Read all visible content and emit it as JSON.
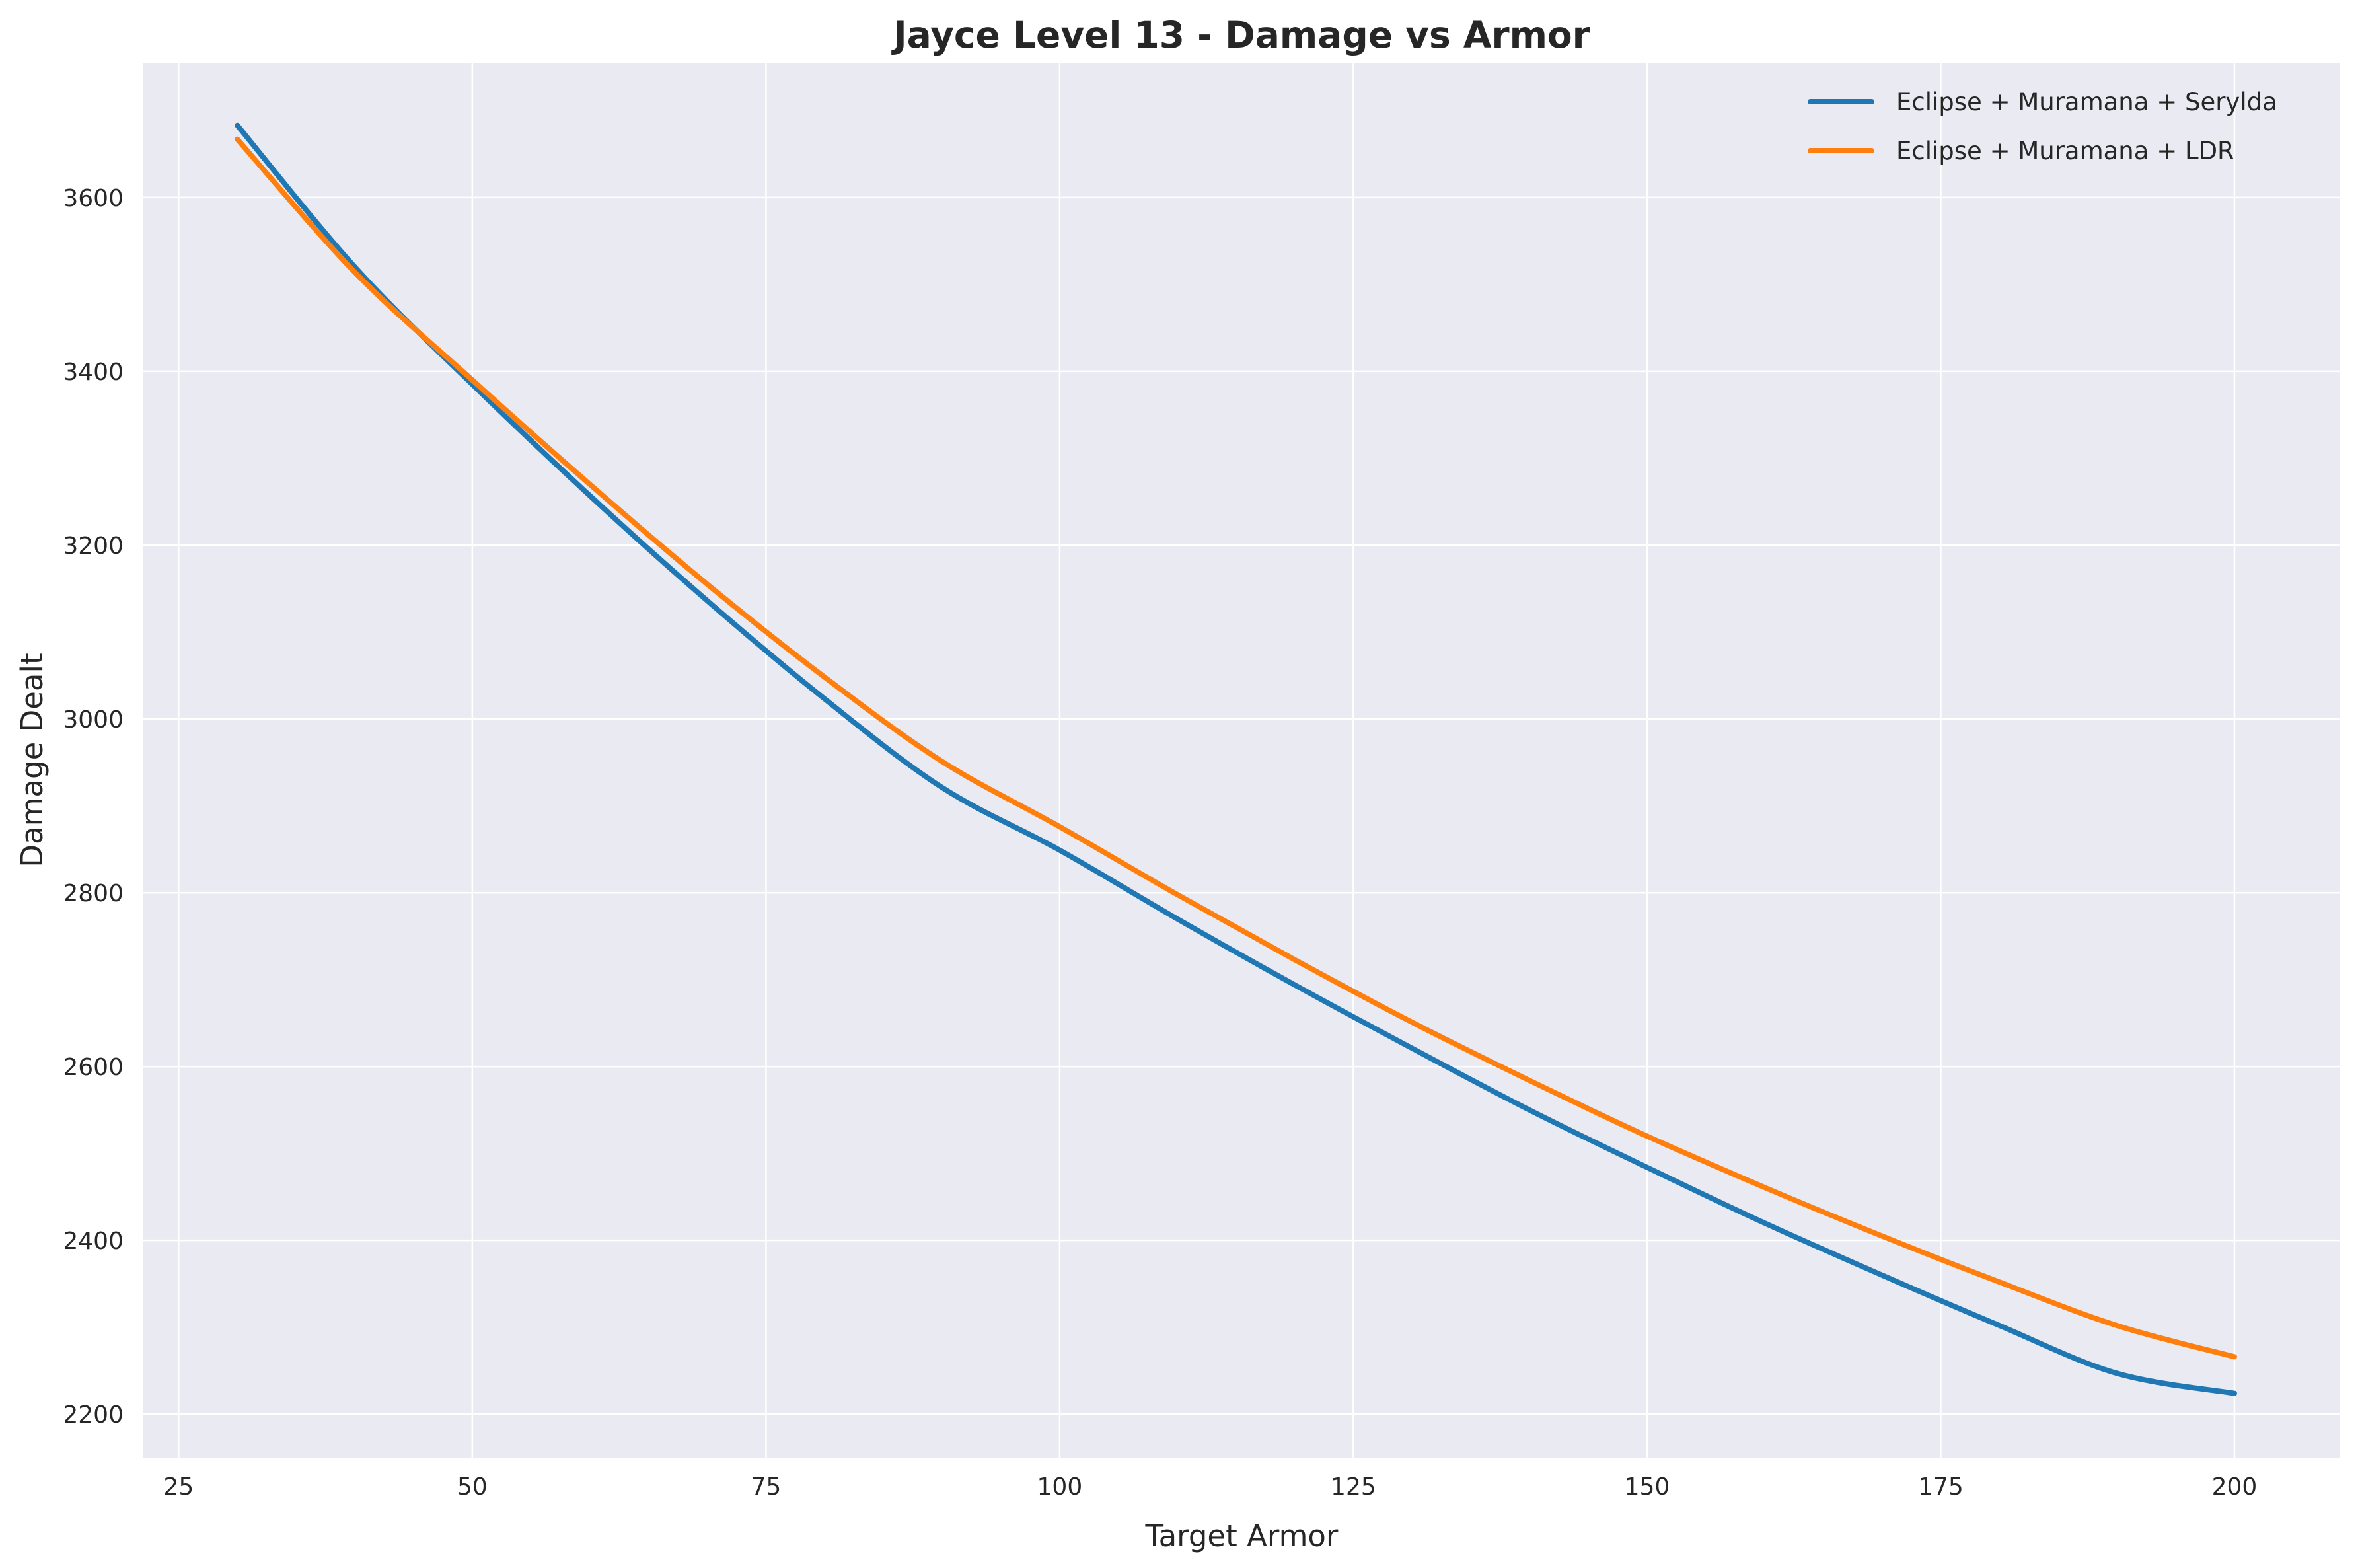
{
  "chart_data": {
    "type": "line",
    "title": "Jayce Level 13 - Damage vs Armor",
    "xlabel": "Target Armor",
    "ylabel": "Damage Dealt",
    "xlim": [
      22,
      209
    ],
    "ylim": [
      2150,
      3755
    ],
    "xticks": [
      25,
      50,
      75,
      100,
      125,
      150,
      175,
      200
    ],
    "yticks": [
      2200,
      2400,
      2600,
      2800,
      3000,
      3200,
      3400,
      3600
    ],
    "grid": true,
    "legend_position": "top-right",
    "background": "#eaeaf2",
    "x": [
      30,
      40,
      50,
      60,
      70,
      80,
      90,
      100,
      110,
      120,
      130,
      140,
      150,
      160,
      170,
      180,
      190,
      200
    ],
    "series": [
      {
        "name": "Eclipse + Muramana + Serylda",
        "color": "#1f77b4",
        "values": [
          3683,
          3520,
          3385,
          3257,
          3136,
          3023,
          2921,
          2849,
          2770,
          2694,
          2621,
          2550,
          2484,
          2420,
          2360,
          2302,
          2247,
          2224
        ]
      },
      {
        "name": "Eclipse + Muramana + LDR",
        "color": "#ff7f0e",
        "values": [
          3667,
          3514,
          3390,
          3270,
          3155,
          3048,
          2951,
          2876,
          2798,
          2723,
          2651,
          2584,
          2520,
          2461,
          2405,
          2352,
          2302,
          2266
        ]
      }
    ]
  }
}
